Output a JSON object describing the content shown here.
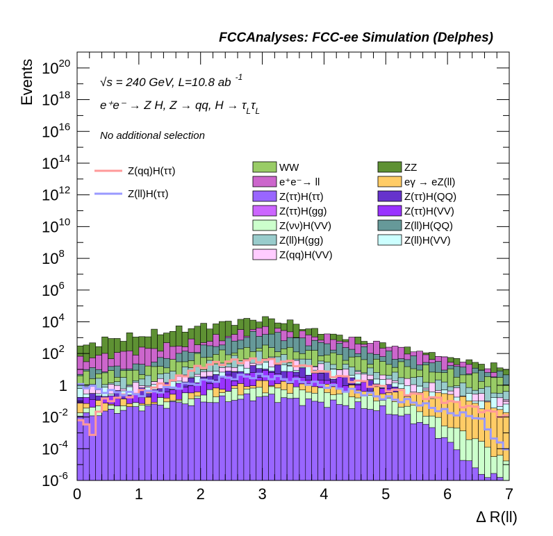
{
  "chart_data": {
    "type": "histogram",
    "title": "FCCAnalyses: FCC-ee Simulation (Delphes)",
    "xlabel": "Δ R(ll)",
    "ylabel": "Events",
    "xlim": [
      0,
      7
    ],
    "ylim_exp": [
      -6,
      21
    ],
    "ytick_exps": [
      -6,
      -4,
      -2,
      0,
      2,
      4,
      6,
      8,
      10,
      12,
      14,
      16,
      18,
      20
    ],
    "xticks": [
      "0",
      "1",
      "2",
      "3",
      "4",
      "5",
      "6",
      "7"
    ],
    "log_y": true,
    "annotations": {
      "sqrt": "√s",
      "energy": " = 240 GeV, L=10.8 ab",
      "lumi_exp": "-1",
      "process": "e⁺e⁻ → Z H, Z  → qq, H  → τ",
      "tau_sub": "L",
      "tau2": "τ",
      "tau2_sub": "L",
      "selection": "No additional selection"
    },
    "legend_lines": [
      {
        "label": "Z(qq)H(ττ)",
        "color": "#ff9999"
      },
      {
        "label": "Z(ll)H(ττ)",
        "color": "#9999ff"
      }
    ],
    "legend_fills": [
      {
        "label": "WW",
        "color": "#99cc66"
      },
      {
        "label": "ZZ",
        "color": "#5e9133"
      },
      {
        "label": "e⁺e⁻→ ll",
        "color": "#cc66cc"
      },
      {
        "label": "eγ → eZ(ll)",
        "color": "#ffcc66"
      },
      {
        "label": "Z(ττ)H(ττ)",
        "color": "#9966ff"
      },
      {
        "label": "Z(ττ)H(QQ)",
        "color": "#6633cc"
      },
      {
        "label": "Z(ττ)H(gg)",
        "color": "#cc66ff"
      },
      {
        "label": "Z(ττ)H(VV)",
        "color": "#9933ff"
      },
      {
        "label": "Z(νν)H(VV)",
        "color": "#ccffcc"
      },
      {
        "label": "Z(ll)H(QQ)",
        "color": "#669999"
      },
      {
        "label": "Z(ll)H(gg)",
        "color": "#99cccc"
      },
      {
        "label": "Z(ll)H(VV)",
        "color": "#ccffff"
      },
      {
        "label": "Z(qq)H(VV)",
        "color": "#ffccff"
      }
    ],
    "stack_layers": [
      {
        "name": "Z(ττ)H(ττ)",
        "color": "#9966ff",
        "knots": [
          [
            0,
            -2
          ],
          [
            0.8,
            -1.5
          ],
          [
            1.5,
            -1.2
          ],
          [
            2.5,
            -0.9
          ],
          [
            3,
            -0.7
          ],
          [
            3.7,
            -1.0
          ],
          [
            4.5,
            -1.3
          ],
          [
            5,
            -1.6
          ],
          [
            5.6,
            -2.4
          ],
          [
            6,
            -3.5
          ],
          [
            6.5,
            -5.5
          ],
          [
            7,
            -6
          ]
        ]
      },
      {
        "name": "Z(νν)H(VV)",
        "color": "#ccffcc",
        "knots": [
          [
            0,
            -1.5
          ],
          [
            1,
            -1.3
          ],
          [
            2,
            -0.6
          ],
          [
            3,
            -0.2
          ],
          [
            4,
            -0.4
          ],
          [
            5,
            -0.9
          ],
          [
            5.5,
            -1.5
          ],
          [
            6,
            -2.5
          ],
          [
            6.5,
            -3.5
          ],
          [
            7,
            -5
          ]
        ]
      },
      {
        "name": "eγ → eZ(ll)",
        "color": "#ffcc66",
        "knots": [
          [
            0,
            -1.2
          ],
          [
            1,
            -1.1
          ],
          [
            2,
            -0.5
          ],
          [
            3,
            0.2
          ],
          [
            4,
            -0.1
          ],
          [
            5,
            -0.4
          ],
          [
            6,
            -0.6
          ],
          [
            6.5,
            -1.2
          ],
          [
            7,
            -1.6
          ]
        ]
      },
      {
        "name": "Z(ττ)H(VV)",
        "color": "#9933ff",
        "knots": [
          [
            0,
            -1
          ],
          [
            1,
            -0.7
          ],
          [
            2,
            0.2
          ],
          [
            3,
            0.8
          ],
          [
            4,
            0.4
          ],
          [
            5,
            -0.3
          ],
          [
            6,
            -1.8
          ],
          [
            7,
            -3
          ]
        ]
      },
      {
        "name": "Z(ττ)H(QQ)",
        "color": "#6633cc",
        "knots": [
          [
            0,
            -0.8
          ],
          [
            1,
            -0.5
          ],
          [
            2,
            0.4
          ],
          [
            3,
            1.1
          ],
          [
            4,
            0.7
          ],
          [
            5,
            0
          ],
          [
            6,
            -1.5
          ],
          [
            7,
            -2.8
          ]
        ]
      },
      {
        "name": "Z(ll)H(VV)",
        "color": "#ccffff",
        "knots": [
          [
            0,
            -0.5
          ],
          [
            1,
            -0.3
          ],
          [
            2,
            0.5
          ],
          [
            3,
            1.3
          ],
          [
            4,
            0.9
          ],
          [
            5,
            0.2
          ],
          [
            6,
            -0.6
          ],
          [
            7,
            -1.2
          ]
        ]
      },
      {
        "name": "Z(qq)H(VV)",
        "color": "#ffccff",
        "knots": [
          [
            0,
            -0.2
          ],
          [
            1,
            0
          ],
          [
            2,
            0.7
          ],
          [
            3,
            1.5
          ],
          [
            4,
            1.1
          ],
          [
            5,
            0.4
          ],
          [
            6,
            -0.3
          ],
          [
            7,
            -1.0
          ]
        ]
      },
      {
        "name": "Z(ll)H(gg)",
        "color": "#99cccc",
        "knots": [
          [
            0,
            0.1
          ],
          [
            1,
            0.3
          ],
          [
            2,
            1.2
          ],
          [
            3,
            1.9
          ],
          [
            4,
            1.4
          ],
          [
            5,
            0.7
          ],
          [
            6,
            0.1
          ],
          [
            7,
            -0.5
          ]
        ]
      },
      {
        "name": "WW",
        "color": "#99cc66",
        "knots": [
          [
            0,
            0.6
          ],
          [
            1,
            0.9
          ],
          [
            2,
            1.8
          ],
          [
            3,
            2.4
          ],
          [
            4,
            2.0
          ],
          [
            5,
            1.4
          ],
          [
            6,
            0.8
          ],
          [
            7,
            0.3
          ]
        ]
      },
      {
        "name": "Z(ll)H(QQ)",
        "color": "#669999",
        "knots": [
          [
            0,
            0.9
          ],
          [
            1,
            1.2
          ],
          [
            2,
            2.3
          ],
          [
            3,
            3.3
          ],
          [
            4,
            2.6
          ],
          [
            5,
            1.9
          ],
          [
            6,
            1.2
          ],
          [
            7,
            0.6
          ]
        ]
      },
      {
        "name": "e⁺e⁻→ ll",
        "color": "#cc66cc",
        "knots": [
          [
            0,
            1.6
          ],
          [
            1,
            2.2
          ],
          [
            2,
            2.7
          ],
          [
            3,
            3.6
          ],
          [
            4,
            3.0
          ],
          [
            5,
            2.5
          ],
          [
            6,
            1.6
          ],
          [
            7,
            0.5
          ]
        ]
      },
      {
        "name": "ZZ",
        "color": "#5e9133",
        "knots": [
          [
            0,
            2.3
          ],
          [
            0.5,
            2.9
          ],
          [
            1,
            3.1
          ],
          [
            1.5,
            3.4
          ],
          [
            2,
            3.7
          ],
          [
            2.5,
            4.0
          ],
          [
            3,
            4.2
          ],
          [
            3.5,
            3.9
          ],
          [
            4,
            3.2
          ],
          [
            4.5,
            2.9
          ],
          [
            5,
            2.4
          ],
          [
            5.5,
            2.1
          ],
          [
            6,
            1.7
          ],
          [
            7,
            1.0
          ]
        ]
      }
    ],
    "signal_lines": [
      {
        "name": "Z(qq)H(ττ)",
        "color": "#ff9999",
        "knots": [
          [
            0,
            -2
          ],
          [
            0.25,
            -3
          ],
          [
            0.4,
            -1
          ],
          [
            1,
            -0.5
          ],
          [
            1.5,
            0.2
          ],
          [
            2,
            1.2
          ],
          [
            2.5,
            1.5
          ],
          [
            3,
            1.6
          ],
          [
            3.5,
            1.4
          ],
          [
            4,
            0.8
          ],
          [
            4.5,
            0.3
          ],
          [
            5,
            -0.2
          ],
          [
            5.5,
            -0.6
          ],
          [
            6,
            -1.0
          ],
          [
            6.5,
            -1.5
          ],
          [
            7,
            -2
          ]
        ]
      },
      {
        "name": "Z(ll)H(ττ)",
        "color": "#9999ff",
        "knots": [
          [
            0,
            0.1
          ],
          [
            0.5,
            -0.4
          ],
          [
            1,
            -0.6
          ],
          [
            1.5,
            -0.2
          ],
          [
            2,
            0.2
          ],
          [
            2.5,
            0.5
          ],
          [
            3,
            0.6
          ],
          [
            3.5,
            0.3
          ],
          [
            4,
            0
          ],
          [
            4.5,
            -0.4
          ],
          [
            5,
            -0.8
          ],
          [
            5.5,
            -1.1
          ],
          [
            6,
            -1.7
          ],
          [
            6.5,
            -2
          ],
          [
            6.9,
            -4
          ]
        ]
      }
    ]
  }
}
